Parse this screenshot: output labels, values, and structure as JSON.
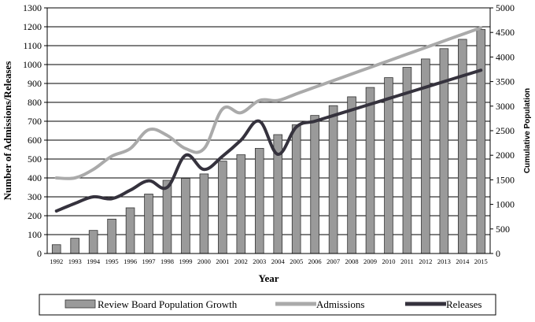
{
  "chart_data": {
    "type": "bar",
    "title": "",
    "xlabel": "Year",
    "ylabel": "Number of Admissions/Releases",
    "y2label": "Cumulative Population",
    "ylim": [
      0,
      1300
    ],
    "y2lim": [
      0,
      5000
    ],
    "yticks": [
      0,
      100,
      200,
      300,
      400,
      500,
      600,
      700,
      800,
      900,
      1000,
      1100,
      1200,
      1300
    ],
    "y2ticks": [
      0,
      500,
      1000,
      1500,
      2000,
      2500,
      3000,
      3500,
      4000,
      4500,
      5000
    ],
    "grid": true,
    "legend_position": "bottom",
    "categories": [
      "1992",
      "1993",
      "1994",
      "1995",
      "1996",
      "1997",
      "1998",
      "1999",
      "2000",
      "2001",
      "2002",
      "2003",
      "2004",
      "2005",
      "2006",
      "2007",
      "2008",
      "2009",
      "2010",
      "2011",
      "2012",
      "2013",
      "2014",
      "2015"
    ],
    "series": [
      {
        "name": "Review Board Population Growth",
        "kind": "bar",
        "axis": "right",
        "color": "#9a9a9a",
        "values": [
          180,
          310,
          470,
          700,
          930,
          1210,
          1490,
          1530,
          1620,
          1880,
          2010,
          2140,
          2420,
          2620,
          2810,
          3010,
          3190,
          3380,
          3580,
          3790,
          3960,
          4170,
          4360,
          4560
        ]
      },
      {
        "name": "Admissions",
        "kind": "line",
        "axis": "left",
        "color": "#aaaaaa",
        "values": [
          400,
          400,
          445,
          515,
          555,
          655,
          625,
          555,
          555,
          765,
          745,
          810,
          810,
          845,
          880,
          915,
          950,
          985,
          1020,
          1055,
          1090,
          1125,
          1160,
          1195
        ]
      },
      {
        "name": "Releases",
        "kind": "line",
        "axis": "left",
        "color": "#35323d",
        "values": [
          225,
          265,
          300,
          290,
          335,
          385,
          350,
          520,
          445,
          515,
          600,
          700,
          525,
          670,
          700,
          730,
          760,
          790,
          820,
          850,
          880,
          910,
          940,
          970
        ]
      }
    ]
  }
}
